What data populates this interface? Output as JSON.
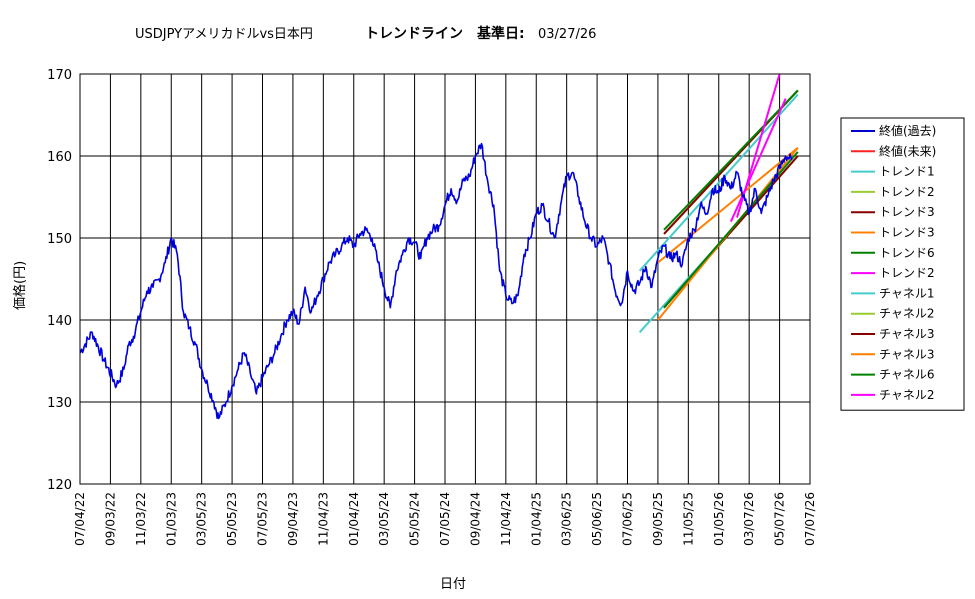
{
  "chart_data": {
    "type": "line",
    "title": "USDJPYアメリカドルvs日本円",
    "subtitle_label": "トレンドライン　基準日:",
    "subtitle_date": "03/27/26",
    "xlabel": "日付",
    "ylabel": "価格(円)",
    "ylim": [
      120,
      170
    ],
    "y_ticks": [
      "120",
      "130",
      "140",
      "150",
      "160",
      "170"
    ],
    "x_ticks": [
      "07/04/22",
      "09/03/22",
      "11/03/22",
      "01/03/23",
      "03/05/23",
      "05/05/23",
      "07/05/23",
      "09/04/23",
      "11/04/23",
      "01/04/24",
      "03/05/24",
      "05/05/24",
      "07/05/24",
      "09/04/24",
      "11/04/24",
      "01/04/25",
      "03/06/25",
      "05/06/25",
      "07/06/25",
      "09/05/25",
      "11/05/25",
      "01/05/26",
      "03/07/26",
      "05/07/26",
      "07/07/26"
    ],
    "grid": true,
    "legend_position": "right",
    "price_path": [
      [
        0,
        136
      ],
      [
        1,
        138.5
      ],
      [
        2,
        135
      ],
      [
        3,
        132
      ],
      [
        3.6,
        134
      ],
      [
        4,
        137
      ],
      [
        4.4,
        138
      ],
      [
        5,
        141
      ],
      [
        5.5,
        143.5
      ],
      [
        6,
        144
      ],
      [
        6.5,
        145
      ],
      [
        7,
        147
      ],
      [
        7.5,
        150
      ],
      [
        8,
        148
      ],
      [
        8.5,
        141
      ],
      [
        9,
        139
      ],
      [
        9.5,
        137
      ],
      [
        10,
        134
      ],
      [
        10.5,
        132
      ],
      [
        11,
        130
      ],
      [
        11.4,
        128
      ],
      [
        12,
        130
      ],
      [
        12.5,
        132
      ],
      [
        13,
        134
      ],
      [
        13.5,
        136
      ],
      [
        14,
        133.5
      ],
      [
        14.5,
        131
      ],
      [
        15,
        133
      ],
      [
        15.5,
        134.5
      ],
      [
        16,
        136
      ],
      [
        16.5,
        138
      ],
      [
        17,
        140
      ],
      [
        17.5,
        141
      ],
      [
        18,
        139.5
      ],
      [
        18.5,
        144
      ],
      [
        19,
        141
      ],
      [
        19.5,
        143
      ],
      [
        20,
        145
      ],
      [
        20.5,
        147
      ],
      [
        21,
        148
      ],
      [
        21.5,
        149
      ],
      [
        22,
        150
      ],
      [
        22.5,
        149
      ],
      [
        23,
        150.5
      ],
      [
        23.5,
        151
      ],
      [
        24,
        150
      ],
      [
        24.5,
        147
      ],
      [
        25,
        144
      ],
      [
        25.5,
        141.5
      ],
      [
        26,
        146
      ],
      [
        26.5,
        148
      ],
      [
        27,
        150
      ],
      [
        27.5,
        149.5
      ],
      [
        28,
        147.5
      ],
      [
        28.5,
        150
      ],
      [
        29,
        151
      ],
      [
        29.5,
        151.5
      ],
      [
        30,
        154
      ],
      [
        30.5,
        156
      ],
      [
        31,
        154.5
      ],
      [
        31.5,
        157
      ],
      [
        32,
        157.5
      ],
      [
        32.5,
        160
      ],
      [
        33,
        161.5
      ],
      [
        33.5,
        157
      ],
      [
        34,
        154
      ],
      [
        34.5,
        146
      ],
      [
        35,
        143
      ],
      [
        35.5,
        142
      ],
      [
        36,
        143
      ],
      [
        36.5,
        148
      ],
      [
        37,
        150
      ],
      [
        37.5,
        153
      ],
      [
        38,
        154
      ],
      [
        38.5,
        152
      ],
      [
        39,
        150
      ],
      [
        39.5,
        154
      ],
      [
        40,
        157.5
      ],
      [
        40.5,
        158
      ],
      [
        41,
        155
      ],
      [
        41.5,
        152
      ],
      [
        42,
        150
      ],
      [
        42.5,
        149
      ],
      [
        43,
        150
      ],
      [
        43.5,
        147
      ],
      [
        44,
        143.5
      ],
      [
        44.5,
        142
      ],
      [
        45,
        146
      ],
      [
        45.5,
        143.5
      ],
      [
        46,
        144.5
      ],
      [
        46.5,
        146.5
      ],
      [
        47,
        144
      ],
      [
        47.5,
        147.5
      ],
      [
        48,
        149
      ],
      [
        48.5,
        147.5
      ],
      [
        49,
        148
      ],
      [
        49.5,
        146.8
      ],
      [
        50,
        150
      ],
      [
        50.5,
        151
      ],
      [
        51,
        154
      ],
      [
        51.5,
        153
      ],
      [
        52,
        156
      ],
      [
        52.5,
        155.5
      ],
      [
        53,
        157.5
      ],
      [
        53.5,
        156
      ],
      [
        54,
        158
      ],
      [
        54.5,
        155
      ],
      [
        55,
        153
      ],
      [
        55.5,
        156
      ],
      [
        56,
        153
      ],
      [
        56.5,
        155
      ],
      [
        57,
        157
      ],
      [
        57.5,
        158.5
      ],
      [
        58,
        160
      ],
      [
        58.5,
        159.5
      ]
    ],
    "lines": [
      {
        "name": "トレンド1",
        "color": "#44cccc",
        "x1": 46,
        "y1": 146,
        "x2": 59,
        "y2": 167.5
      },
      {
        "name": "チャネル1",
        "color": "#44cccc",
        "x1": 46,
        "y1": 138.5,
        "x2": 59,
        "y2": 160
      },
      {
        "name": "トレンド2",
        "color": "#99cc33",
        "x1": 48,
        "y1": 150.5,
        "x2": 59,
        "y2": 168
      },
      {
        "name": "チャネル2",
        "color": "#99cc33",
        "x1": 48,
        "y1": 141.5,
        "x2": 59,
        "y2": 160
      },
      {
        "name": "トレンド3",
        "color": "#880000",
        "x1": 48,
        "y1": 150.5,
        "x2": 59,
        "y2": 168
      },
      {
        "name": "チャネル3",
        "color": "#880000",
        "x1": 48,
        "y1": 141.5,
        "x2": 59,
        "y2": 160
      },
      {
        "name": "トレンド3",
        "color": "#ff8000",
        "x1": 47.5,
        "y1": 147,
        "x2": 59,
        "y2": 161
      },
      {
        "name": "チャネル3",
        "color": "#ff8000",
        "x1": 47.5,
        "y1": 140,
        "x2": 59,
        "y2": 161
      },
      {
        "name": "トレンド6",
        "color": "#008000",
        "x1": 48,
        "y1": 151,
        "x2": 59,
        "y2": 168
      },
      {
        "name": "チャネル6",
        "color": "#008000",
        "x1": 48,
        "y1": 141.5,
        "x2": 59,
        "y2": 160.5
      },
      {
        "name": "トレンド2",
        "color": "#ff00ff",
        "x1": 54,
        "y1": 152.5,
        "x2": 57.5,
        "y2": 170
      },
      {
        "name": "チャネル2",
        "color": "#ff00ff",
        "x1": 53.5,
        "y1": 152,
        "x2": 58,
        "y2": 167
      }
    ],
    "legend": [
      {
        "label": "終値(過去)",
        "color": "#0000cc"
      },
      {
        "label": "終値(未来)",
        "color": "#ff2222"
      },
      {
        "label": "トレンド1",
        "color": "#44cccc"
      },
      {
        "label": "トレンド2",
        "color": "#99cc33"
      },
      {
        "label": "トレンド3",
        "color": "#880000"
      },
      {
        "label": "トレンド3",
        "color": "#ff8000"
      },
      {
        "label": "トレンド6",
        "color": "#008000"
      },
      {
        "label": "トレンド2",
        "color": "#ff00ff"
      },
      {
        "label": "チャネル1",
        "color": "#44cccc"
      },
      {
        "label": "チャネル2",
        "color": "#99cc33"
      },
      {
        "label": "チャネル3",
        "color": "#880000"
      },
      {
        "label": "チャネル3",
        "color": "#ff8000"
      },
      {
        "label": "チャネル6",
        "color": "#008000"
      },
      {
        "label": "チャネル2",
        "color": "#ff00ff"
      }
    ]
  }
}
